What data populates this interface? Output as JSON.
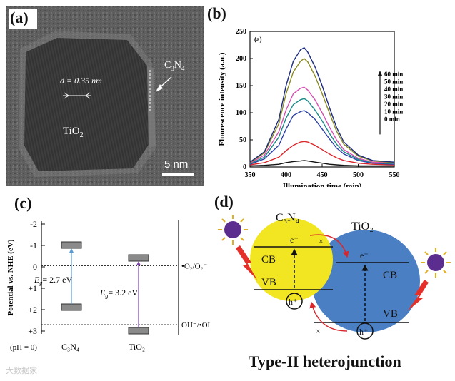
{
  "panel_a": {
    "label": "(a)",
    "spacing": "d = 0.35 nm",
    "tio2": "TiO",
    "tio2_sub": "2",
    "c3n4": "C",
    "c3n4_sub1": "3",
    "c3n4_n": "N",
    "c3n4_sub2": "4",
    "scale": "5 nm",
    "colors": {
      "bg": "#5e5e5e",
      "particle": "#3d3d3d"
    }
  },
  "panel_b": {
    "label": "(b)",
    "inset": "(a)",
    "chart_data": {
      "type": "line",
      "title": "",
      "xlabel": "Illumination time (min)",
      "ylabel": "Fluorescence intensity (a.u.)",
      "xlim": [
        350,
        550
      ],
      "ylim": [
        0,
        250
      ],
      "xticks": [
        "350",
        "400",
        "450",
        "500",
        "550"
      ],
      "yticks": [
        "0",
        "50",
        "100",
        "150",
        "200",
        "250"
      ],
      "x": [
        350,
        370,
        390,
        400,
        410,
        420,
        425,
        430,
        440,
        450,
        460,
        470,
        480,
        500,
        520,
        550
      ],
      "series": [
        {
          "name": "0 min",
          "color": "#111111",
          "values": [
            2,
            3,
            5,
            8,
            10,
            11,
            12,
            11,
            9,
            7,
            5,
            4,
            3,
            2,
            2,
            2
          ]
        },
        {
          "name": "10 min",
          "color": "#d8262c",
          "values": [
            4,
            8,
            18,
            30,
            40,
            46,
            47,
            46,
            40,
            32,
            24,
            17,
            12,
            7,
            5,
            4
          ]
        },
        {
          "name": "20 min",
          "color": "#2b3fa6",
          "values": [
            5,
            15,
            40,
            70,
            95,
            102,
            104,
            100,
            88,
            70,
            52,
            35,
            24,
            12,
            7,
            5
          ]
        },
        {
          "name": "30 min",
          "color": "#1a8a8a",
          "values": [
            6,
            18,
            55,
            90,
            115,
            124,
            126,
            122,
            105,
            85,
            62,
            42,
            28,
            14,
            8,
            6
          ]
        },
        {
          "name": "40 min",
          "color": "#d64fb1",
          "values": [
            7,
            22,
            65,
            105,
            135,
            145,
            147,
            142,
            124,
            100,
            74,
            50,
            32,
            16,
            9,
            7
          ]
        },
        {
          "name": "50 min",
          "color": "#8a8a22",
          "values": [
            8,
            26,
            80,
            135,
            175,
            195,
            200,
            194,
            168,
            135,
            100,
            66,
            42,
            20,
            11,
            8
          ]
        },
        {
          "name": "60 min",
          "color": "#1b2a80",
          "values": [
            9,
            28,
            88,
            150,
            195,
            216,
            220,
            212,
            185,
            150,
            110,
            73,
            46,
            22,
            12,
            9
          ]
        }
      ],
      "arrow_labels": [
        "60 min",
        "50 min",
        "40 min",
        "30 min",
        "20 min",
        "10 min",
        "0 min"
      ]
    }
  },
  "panel_c": {
    "label": "(c)",
    "ylabel": "Potential vs. NHE (eV)",
    "yticks": [
      "-2",
      "-1",
      "0",
      "+1",
      "+2",
      "+3"
    ],
    "ph": "(pH = 0)",
    "c3n4_x": "C₃N₄",
    "tio2_x": "TiO₂",
    "eg1": "= 2.7 eV",
    "eg2": "= 3.2 eV",
    "eg_E": "E",
    "eg_g": "g",
    "redox1": "•O₂/O₂⁻",
    "redox2": "OH⁻/•OH",
    "levels": {
      "c3n4_cb": -0.9,
      "c3n4_vb": 1.8,
      "tio2_cb": -0.3,
      "tio2_vb": 2.9,
      "o2": -0.05,
      "oh": 2.7
    }
  },
  "panel_d": {
    "label": "(d)",
    "c3n4_title": "C₃N₄",
    "tio2_title": "TiO₂",
    "cb": "CB",
    "vb": "VB",
    "electron": "e⁻",
    "hole": "h⁺",
    "caption": "Type-II heterojunction",
    "colors": {
      "c3n4": "#f2e623",
      "tio2": "#4a7fc4",
      "sun": "#5b2d8e",
      "bolt": "#e5302a"
    }
  },
  "watermark": "大数据家"
}
